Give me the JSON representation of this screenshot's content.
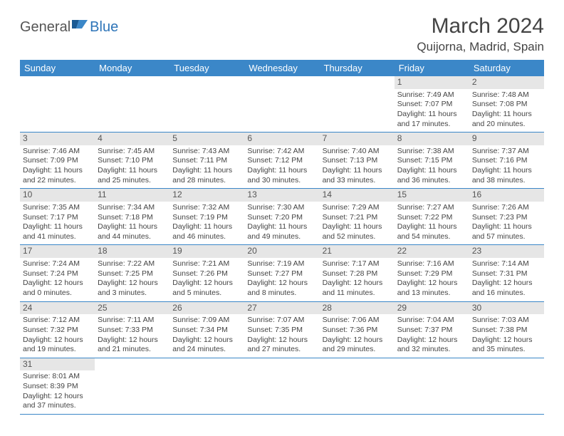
{
  "logo": {
    "part1": "General",
    "part2": "Blue"
  },
  "title": "March 2024",
  "location": "Quijorna, Madrid, Spain",
  "colors": {
    "header_bg": "#3b87c8",
    "header_text": "#ffffff",
    "daynum_bg": "#e6e6e6",
    "border": "#3b87c8",
    "text": "#444444",
    "logo_gray": "#555555",
    "logo_blue": "#2d74b8"
  },
  "day_headers": [
    "Sunday",
    "Monday",
    "Tuesday",
    "Wednesday",
    "Thursday",
    "Friday",
    "Saturday"
  ],
  "weeks": [
    [
      {
        "n": "",
        "lines": []
      },
      {
        "n": "",
        "lines": []
      },
      {
        "n": "",
        "lines": []
      },
      {
        "n": "",
        "lines": []
      },
      {
        "n": "",
        "lines": []
      },
      {
        "n": "1",
        "lines": [
          "Sunrise: 7:49 AM",
          "Sunset: 7:07 PM",
          "Daylight: 11 hours and 17 minutes."
        ]
      },
      {
        "n": "2",
        "lines": [
          "Sunrise: 7:48 AM",
          "Sunset: 7:08 PM",
          "Daylight: 11 hours and 20 minutes."
        ]
      }
    ],
    [
      {
        "n": "3",
        "lines": [
          "Sunrise: 7:46 AM",
          "Sunset: 7:09 PM",
          "Daylight: 11 hours and 22 minutes."
        ]
      },
      {
        "n": "4",
        "lines": [
          "Sunrise: 7:45 AM",
          "Sunset: 7:10 PM",
          "Daylight: 11 hours and 25 minutes."
        ]
      },
      {
        "n": "5",
        "lines": [
          "Sunrise: 7:43 AM",
          "Sunset: 7:11 PM",
          "Daylight: 11 hours and 28 minutes."
        ]
      },
      {
        "n": "6",
        "lines": [
          "Sunrise: 7:42 AM",
          "Sunset: 7:12 PM",
          "Daylight: 11 hours and 30 minutes."
        ]
      },
      {
        "n": "7",
        "lines": [
          "Sunrise: 7:40 AM",
          "Sunset: 7:13 PM",
          "Daylight: 11 hours and 33 minutes."
        ]
      },
      {
        "n": "8",
        "lines": [
          "Sunrise: 7:38 AM",
          "Sunset: 7:15 PM",
          "Daylight: 11 hours and 36 minutes."
        ]
      },
      {
        "n": "9",
        "lines": [
          "Sunrise: 7:37 AM",
          "Sunset: 7:16 PM",
          "Daylight: 11 hours and 38 minutes."
        ]
      }
    ],
    [
      {
        "n": "10",
        "lines": [
          "Sunrise: 7:35 AM",
          "Sunset: 7:17 PM",
          "Daylight: 11 hours and 41 minutes."
        ]
      },
      {
        "n": "11",
        "lines": [
          "Sunrise: 7:34 AM",
          "Sunset: 7:18 PM",
          "Daylight: 11 hours and 44 minutes."
        ]
      },
      {
        "n": "12",
        "lines": [
          "Sunrise: 7:32 AM",
          "Sunset: 7:19 PM",
          "Daylight: 11 hours and 46 minutes."
        ]
      },
      {
        "n": "13",
        "lines": [
          "Sunrise: 7:30 AM",
          "Sunset: 7:20 PM",
          "Daylight: 11 hours and 49 minutes."
        ]
      },
      {
        "n": "14",
        "lines": [
          "Sunrise: 7:29 AM",
          "Sunset: 7:21 PM",
          "Daylight: 11 hours and 52 minutes."
        ]
      },
      {
        "n": "15",
        "lines": [
          "Sunrise: 7:27 AM",
          "Sunset: 7:22 PM",
          "Daylight: 11 hours and 54 minutes."
        ]
      },
      {
        "n": "16",
        "lines": [
          "Sunrise: 7:26 AM",
          "Sunset: 7:23 PM",
          "Daylight: 11 hours and 57 minutes."
        ]
      }
    ],
    [
      {
        "n": "17",
        "lines": [
          "Sunrise: 7:24 AM",
          "Sunset: 7:24 PM",
          "Daylight: 12 hours and 0 minutes."
        ]
      },
      {
        "n": "18",
        "lines": [
          "Sunrise: 7:22 AM",
          "Sunset: 7:25 PM",
          "Daylight: 12 hours and 3 minutes."
        ]
      },
      {
        "n": "19",
        "lines": [
          "Sunrise: 7:21 AM",
          "Sunset: 7:26 PM",
          "Daylight: 12 hours and 5 minutes."
        ]
      },
      {
        "n": "20",
        "lines": [
          "Sunrise: 7:19 AM",
          "Sunset: 7:27 PM",
          "Daylight: 12 hours and 8 minutes."
        ]
      },
      {
        "n": "21",
        "lines": [
          "Sunrise: 7:17 AM",
          "Sunset: 7:28 PM",
          "Daylight: 12 hours and 11 minutes."
        ]
      },
      {
        "n": "22",
        "lines": [
          "Sunrise: 7:16 AM",
          "Sunset: 7:29 PM",
          "Daylight: 12 hours and 13 minutes."
        ]
      },
      {
        "n": "23",
        "lines": [
          "Sunrise: 7:14 AM",
          "Sunset: 7:31 PM",
          "Daylight: 12 hours and 16 minutes."
        ]
      }
    ],
    [
      {
        "n": "24",
        "lines": [
          "Sunrise: 7:12 AM",
          "Sunset: 7:32 PM",
          "Daylight: 12 hours and 19 minutes."
        ]
      },
      {
        "n": "25",
        "lines": [
          "Sunrise: 7:11 AM",
          "Sunset: 7:33 PM",
          "Daylight: 12 hours and 21 minutes."
        ]
      },
      {
        "n": "26",
        "lines": [
          "Sunrise: 7:09 AM",
          "Sunset: 7:34 PM",
          "Daylight: 12 hours and 24 minutes."
        ]
      },
      {
        "n": "27",
        "lines": [
          "Sunrise: 7:07 AM",
          "Sunset: 7:35 PM",
          "Daylight: 12 hours and 27 minutes."
        ]
      },
      {
        "n": "28",
        "lines": [
          "Sunrise: 7:06 AM",
          "Sunset: 7:36 PM",
          "Daylight: 12 hours and 29 minutes."
        ]
      },
      {
        "n": "29",
        "lines": [
          "Sunrise: 7:04 AM",
          "Sunset: 7:37 PM",
          "Daylight: 12 hours and 32 minutes."
        ]
      },
      {
        "n": "30",
        "lines": [
          "Sunrise: 7:03 AM",
          "Sunset: 7:38 PM",
          "Daylight: 12 hours and 35 minutes."
        ]
      }
    ],
    [
      {
        "n": "31",
        "lines": [
          "Sunrise: 8:01 AM",
          "Sunset: 8:39 PM",
          "Daylight: 12 hours and 37 minutes."
        ]
      },
      {
        "n": "",
        "lines": []
      },
      {
        "n": "",
        "lines": []
      },
      {
        "n": "",
        "lines": []
      },
      {
        "n": "",
        "lines": []
      },
      {
        "n": "",
        "lines": []
      },
      {
        "n": "",
        "lines": []
      }
    ]
  ]
}
